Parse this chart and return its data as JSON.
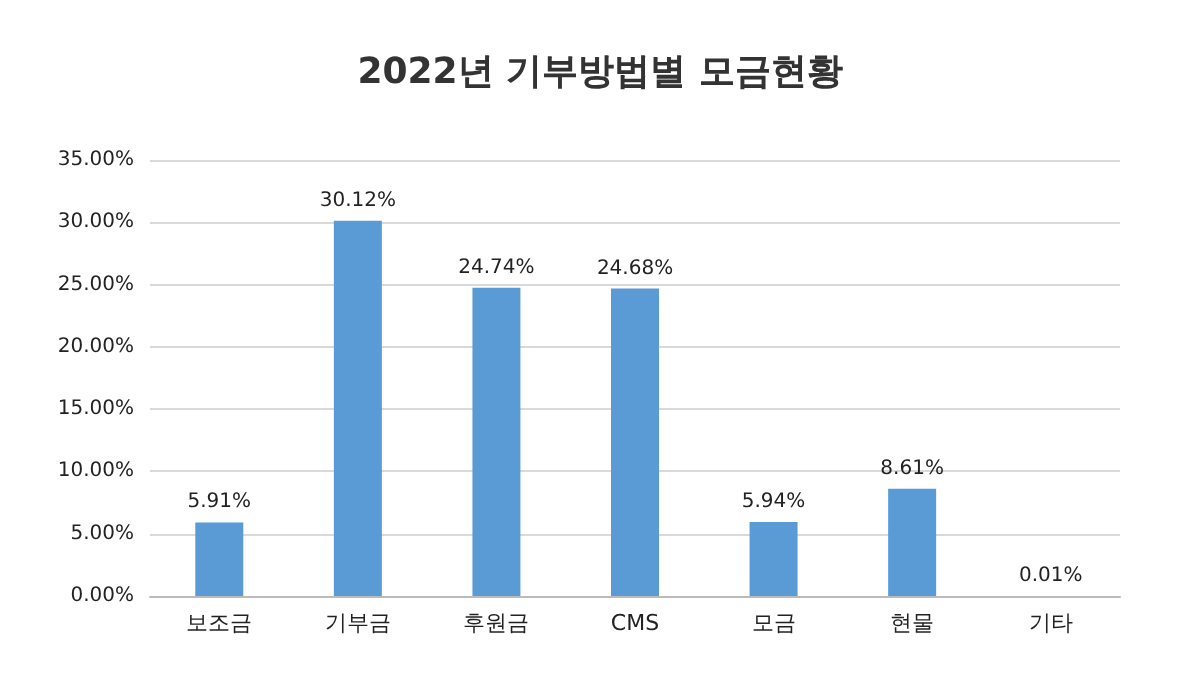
{
  "chart_data": {
    "type": "bar",
    "title": "2022년 기부방법별 모금현황",
    "categories": [
      "보조금",
      "기부금",
      "후원금",
      "CMS",
      "모금",
      "현물",
      "기타"
    ],
    "values": [
      5.91,
      30.12,
      24.74,
      24.68,
      5.94,
      8.61,
      0.01
    ],
    "value_labels": [
      "5.91%",
      "30.12%",
      "24.74%",
      "24.68%",
      "5.94%",
      "8.61%",
      "0.01%"
    ],
    "color": "#5b9bd5",
    "ylim": [
      0,
      35
    ],
    "yticks": [
      {
        "value": 0,
        "label": "0.00%"
      },
      {
        "value": 5,
        "label": "5.00%"
      },
      {
        "value": 10,
        "label": "10.00%"
      },
      {
        "value": 15,
        "label": "15.00%"
      },
      {
        "value": 20,
        "label": "20.00%"
      },
      {
        "value": 25,
        "label": "25.00%"
      },
      {
        "value": 30,
        "label": "30.00%"
      },
      {
        "value": 35,
        "label": "35.00%"
      }
    ],
    "grid": true
  }
}
